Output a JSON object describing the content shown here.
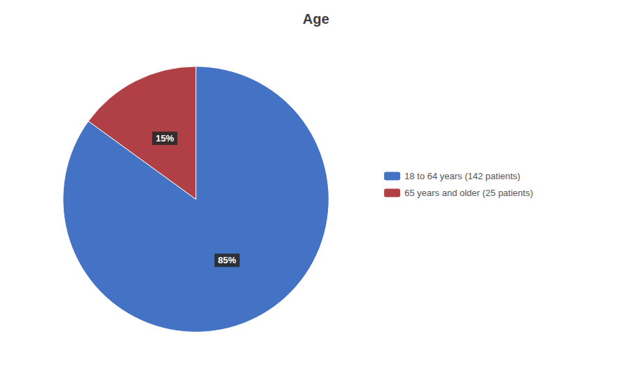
{
  "chart_data": {
    "type": "pie",
    "title": "Age",
    "categories": [
      "18 to 64 years (142 patients)",
      "65 years and older (25 patients)"
    ],
    "values": [
      85,
      15
    ],
    "value_labels": [
      "85%",
      "15%"
    ],
    "colors": [
      "#4472C4",
      "#B04045"
    ],
    "data_labels": true,
    "legend": "right"
  }
}
